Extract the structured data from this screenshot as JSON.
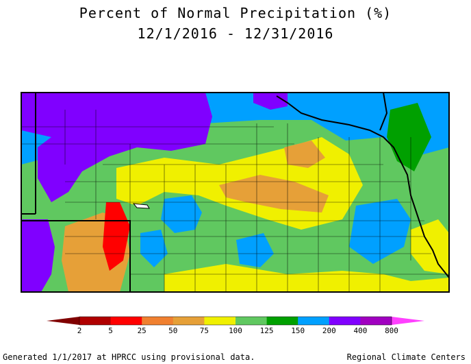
{
  "title_line1": "Percent of Normal Precipitation (%)",
  "title_line2": "12/1/2016 - 12/31/2016",
  "legend": {
    "tick_labels": [
      "2",
      "5",
      "25",
      "50",
      "75",
      "100",
      "125",
      "150",
      "200",
      "400",
      "800"
    ],
    "colors": [
      "#b00000",
      "#ff0000",
      "#f08030",
      "#e6a038",
      "#f0f000",
      "#60c860",
      "#00a000",
      "#00a0ff",
      "#8000ff",
      "#a000c0"
    ],
    "low_arrow_color": "#800000",
    "high_arrow_color": "#ff40ff"
  },
  "palette": {
    "red": "#ff0000",
    "orange": "#e6a038",
    "yellow": "#f0f000",
    "light_green": "#60c860",
    "green": "#00a000",
    "blue": "#00a0ff",
    "purple": "#8000ff"
  },
  "footer": {
    "left": "Generated 1/1/2017 at HPRCC using provisional data.",
    "right": "Regional Climate Centers"
  }
}
